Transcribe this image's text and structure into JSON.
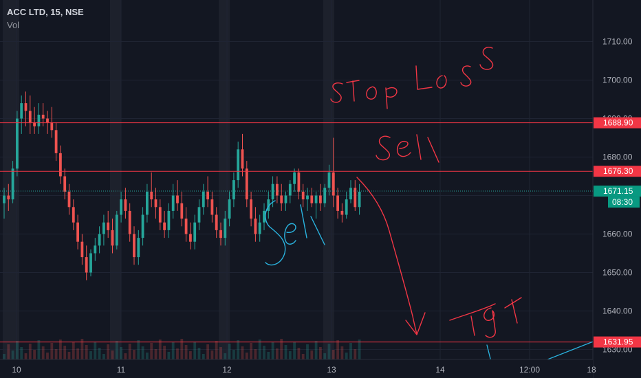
{
  "legend": {
    "symbol": "ACC LTD, 15, NSE",
    "volume_label": "Vol"
  },
  "colors": {
    "background": "#131722",
    "up": "#26a69a",
    "down": "#ef5350",
    "level_line": "#f23645",
    "handwriting_red": "#f23645",
    "handwriting_blue": "#2ab4e0",
    "axis_text": "#b2b5be",
    "grid": "#1f2433"
  },
  "chart_data": {
    "type": "candlestick",
    "ylim": [
      1628,
      1717
    ],
    "x_tick_labels": [
      "10",
      "11",
      "12",
      "13",
      "14",
      "12:00",
      "18"
    ],
    "y_ticks": [
      1630,
      1640,
      1650,
      1660,
      1670,
      1680,
      1690,
      1700,
      1710
    ],
    "y_tick_labels": [
      "1630.00",
      "1640.00",
      "1650.00",
      "1660.00",
      "",
      "1680.00",
      "1690.00",
      "1700.00",
      "1710.00"
    ],
    "levels": [
      {
        "value": 1688.9,
        "label": "1688.90"
      },
      {
        "value": 1676.3,
        "label": "1676.30"
      },
      {
        "value": 1631.95,
        "label": "1631.95"
      }
    ],
    "last_price": {
      "value": 1671.15,
      "label": "1671.15",
      "countdown": "08:30"
    },
    "annotations": [
      {
        "text": "STop LoSS",
        "style": "handwritten"
      },
      {
        "text": "Sell",
        "style": "handwritten"
      },
      {
        "text": "Sell",
        "style": "handwritten"
      },
      {
        "text": "Tgt",
        "style": "handwritten"
      }
    ],
    "ohlc": [
      [
        1668,
        1672,
        1664,
        1670
      ],
      [
        1670,
        1673,
        1666,
        1669
      ],
      [
        1669,
        1679,
        1668,
        1677
      ],
      [
        1677,
        1692,
        1675,
        1690
      ],
      [
        1690,
        1696,
        1686,
        1694
      ],
      [
        1694,
        1697,
        1688,
        1692
      ],
      [
        1692,
        1696,
        1686,
        1689
      ],
      [
        1689,
        1693,
        1686,
        1688
      ],
      [
        1688,
        1694,
        1686,
        1691
      ],
      [
        1691,
        1694,
        1688,
        1690
      ],
      [
        1690,
        1692,
        1686,
        1689
      ],
      [
        1689,
        1693,
        1685,
        1687
      ],
      [
        1687,
        1689,
        1679,
        1681
      ],
      [
        1681,
        1683,
        1673,
        1675
      ],
      [
        1675,
        1677,
        1669,
        1671
      ],
      [
        1671,
        1673,
        1665,
        1667
      ],
      [
        1667,
        1669,
        1661,
        1663
      ],
      [
        1663,
        1665,
        1656,
        1658
      ],
      [
        1658,
        1660,
        1652,
        1654
      ],
      [
        1654,
        1657,
        1648,
        1650
      ],
      [
        1650,
        1656,
        1649,
        1655
      ],
      [
        1655,
        1659,
        1653,
        1657
      ],
      [
        1657,
        1662,
        1655,
        1660
      ],
      [
        1660,
        1665,
        1657,
        1663
      ],
      [
        1663,
        1666,
        1659,
        1661
      ],
      [
        1661,
        1664,
        1655,
        1657
      ],
      [
        1657,
        1666,
        1656,
        1665
      ],
      [
        1665,
        1671,
        1663,
        1669
      ],
      [
        1669,
        1672,
        1664,
        1666
      ],
      [
        1666,
        1668,
        1658,
        1660
      ],
      [
        1660,
        1662,
        1652,
        1654
      ],
      [
        1654,
        1661,
        1652,
        1659
      ],
      [
        1659,
        1667,
        1657,
        1665
      ],
      [
        1665,
        1673,
        1663,
        1671
      ],
      [
        1671,
        1676,
        1667,
        1669
      ],
      [
        1669,
        1672,
        1664,
        1667
      ],
      [
        1667,
        1669,
        1661,
        1663
      ],
      [
        1663,
        1666,
        1659,
        1661
      ],
      [
        1661,
        1668,
        1659,
        1666
      ],
      [
        1666,
        1673,
        1664,
        1670
      ],
      [
        1670,
        1674,
        1666,
        1668
      ],
      [
        1668,
        1671,
        1662,
        1664
      ],
      [
        1664,
        1667,
        1658,
        1660
      ],
      [
        1660,
        1663,
        1656,
        1658
      ],
      [
        1658,
        1665,
        1656,
        1663
      ],
      [
        1663,
        1669,
        1661,
        1667
      ],
      [
        1667,
        1673,
        1665,
        1671
      ],
      [
        1671,
        1675,
        1667,
        1669
      ],
      [
        1669,
        1671,
        1663,
        1665
      ],
      [
        1665,
        1667,
        1659,
        1661
      ],
      [
        1661,
        1663,
        1657,
        1659
      ],
      [
        1659,
        1666,
        1657,
        1664
      ],
      [
        1664,
        1671,
        1662,
        1669
      ],
      [
        1669,
        1676,
        1667,
        1674
      ],
      [
        1674,
        1684,
        1672,
        1682
      ],
      [
        1682,
        1686,
        1675,
        1677
      ],
      [
        1677,
        1679,
        1667,
        1669
      ],
      [
        1669,
        1671,
        1662,
        1664
      ],
      [
        1664,
        1667,
        1658,
        1660
      ],
      [
        1660,
        1665,
        1658,
        1663
      ],
      [
        1663,
        1668,
        1661,
        1666
      ],
      [
        1666,
        1671,
        1664,
        1669
      ],
      [
        1669,
        1675,
        1667,
        1673
      ],
      [
        1673,
        1675,
        1668,
        1670
      ],
      [
        1670,
        1673,
        1666,
        1668
      ],
      [
        1668,
        1671,
        1666,
        1670
      ],
      [
        1670,
        1674,
        1668,
        1673
      ],
      [
        1673,
        1677,
        1671,
        1676
      ],
      [
        1676,
        1677,
        1669,
        1671
      ],
      [
        1671,
        1673,
        1667,
        1669
      ],
      [
        1669,
        1672,
        1666,
        1670
      ],
      [
        1670,
        1672,
        1667,
        1668
      ],
      [
        1668,
        1671,
        1664,
        1670
      ],
      [
        1670,
        1673,
        1666,
        1668
      ],
      [
        1668,
        1673,
        1667,
        1672
      ],
      [
        1672,
        1678,
        1670,
        1676
      ],
      [
        1676,
        1685,
        1667,
        1670
      ],
      [
        1670,
        1672,
        1664,
        1666
      ],
      [
        1666,
        1668,
        1663,
        1665
      ],
      [
        1665,
        1671,
        1664,
        1669
      ],
      [
        1669,
        1674,
        1668,
        1672
      ],
      [
        1672,
        1674,
        1666,
        1667
      ],
      [
        1667,
        1673,
        1665,
        1671
      ]
    ]
  }
}
